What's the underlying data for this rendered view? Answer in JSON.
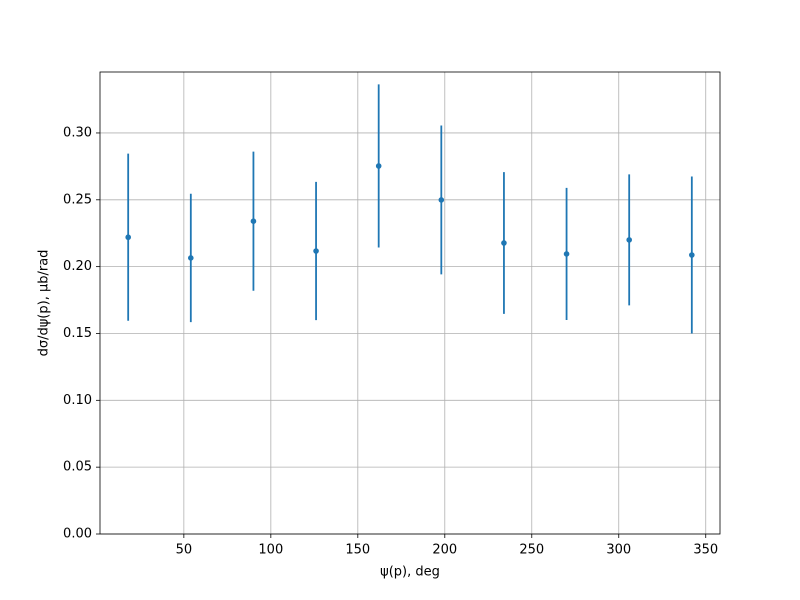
{
  "chart_data": {
    "type": "errorbar",
    "xlabel": "ψ(p), deg",
    "ylabel": "dσ/dψ(p), μb/rad",
    "x": [
      18,
      54,
      90,
      126,
      162,
      198,
      234,
      270,
      306,
      342
    ],
    "series": [
      {
        "color": "#1f77b4",
        "values": [
          0.222,
          0.2065,
          0.234,
          0.2117,
          0.2753,
          0.2499,
          0.2177,
          0.2095,
          0.22,
          0.2087
        ],
        "errors": [
          0.0625,
          0.048,
          0.052,
          0.0517,
          0.061,
          0.0557,
          0.053,
          0.0494,
          0.049,
          0.0587
        ]
      }
    ],
    "xlim": [
      1.8,
      358.2
    ],
    "ylim": [
      0,
      0.3456
    ],
    "xticks": [
      50,
      100,
      150,
      200,
      250,
      300,
      350
    ],
    "yticks": [
      {
        "value": 0,
        "label": "0.00"
      },
      {
        "value": 0.05,
        "label": "0.05"
      },
      {
        "value": 0.1,
        "label": "0.10"
      },
      {
        "value": 0.15,
        "label": "0.15"
      },
      {
        "value": 0.2,
        "label": "0.20"
      },
      {
        "value": 0.25,
        "label": "0.25"
      },
      {
        "value": 0.3,
        "label": "0.30"
      }
    ],
    "grid": true
  }
}
